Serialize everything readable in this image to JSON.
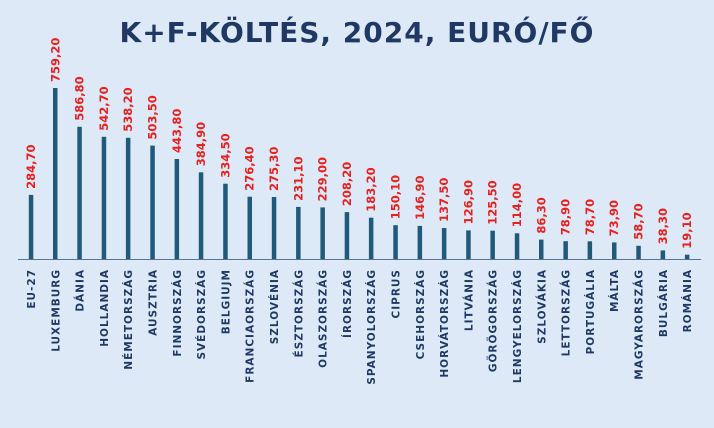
{
  "chart_data": {
    "type": "bar",
    "title": "K+F-KÖLTÉS, 2024, EURÓ/FŐ",
    "categories": [
      "EU-27",
      "LUXEMBURG",
      "DÁNIA",
      "HOLLANDIA",
      "NÉMETORSZÁG",
      "AUSZTRIA",
      "FINNORSZÁG",
      "SVÉDORSZÁG",
      "BELGIUJM",
      "FRANCIAORSZÁG",
      "SZLOVÉNIA",
      "ÉSZTORSZÁG",
      "OLASZORSZÁG",
      "ÍRORSZÁG",
      "SPANYOLORSZÁG",
      "CIPRUS",
      "CSEHORSZÁG",
      "HORVÁTORSZÁG",
      "LITVÁNIA",
      "GÖRÖGORSZÁG",
      "LENGYELORSZÁG",
      "SZLOVÁKIA",
      "LETTORSZÁG",
      "PORTUGÁLIA",
      "MÁLTA",
      "MAGYARORSZÁG",
      "BULGÁRIA",
      "ROMÁNIA"
    ],
    "values": [
      284.7,
      759.2,
      586.8,
      542.7,
      538.2,
      503.5,
      443.8,
      384.9,
      334.5,
      276.4,
      275.3,
      231.1,
      229.0,
      208.2,
      183.2,
      150.1,
      146.9,
      137.5,
      126.9,
      125.5,
      114.0,
      86.3,
      78.9,
      78.7,
      73.9,
      58.7,
      38.3,
      19.1
    ],
    "value_labels": [
      "284,70",
      "759,20",
      "586,80",
      "542,70",
      "538,20",
      "503,50",
      "443,80",
      "384,90",
      "334,50",
      "276,40",
      "275,30",
      "231,10",
      "229,00",
      "208,20",
      "183,20",
      "150,10",
      "146,90",
      "137,50",
      "126,90",
      "125,50",
      "114,00",
      "86,30",
      "78,90",
      "78,70",
      "73,90",
      "58,70",
      "38,30",
      "19,10"
    ],
    "xlabel": "",
    "ylabel": "",
    "ylim": [
      0,
      759.2
    ],
    "grid": false,
    "colors": {
      "bar": "#1f5a7a",
      "value_label": "#e8201e",
      "category_label": "#1f3864",
      "title": "#1f3864",
      "axis": "#5a7394",
      "background": "#dde9f7"
    }
  }
}
